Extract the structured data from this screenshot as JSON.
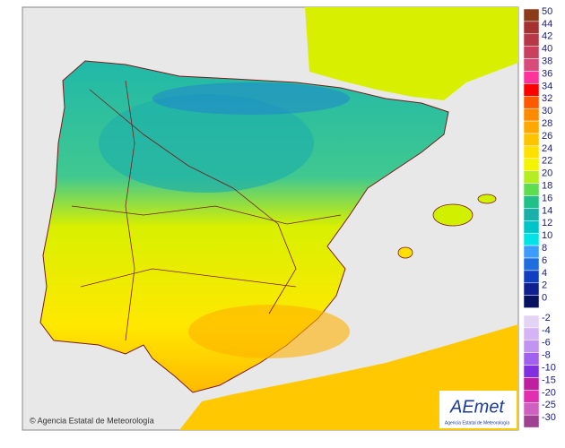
{
  "map": {
    "copyright": "© Agencia Estatal de Meteorología",
    "logo": {
      "name": "AEmet",
      "subtitle": "Agencia Estatal de Meteorología"
    },
    "legend_upper": [
      {
        "label": "50",
        "color": "#8b3a1a"
      },
      {
        "label": "44",
        "color": "#a33230"
      },
      {
        "label": "42",
        "color": "#b63848"
      },
      {
        "label": "40",
        "color": "#c8405e"
      },
      {
        "label": "38",
        "color": "#d84c7c"
      },
      {
        "label": "36",
        "color": "#ff3399"
      },
      {
        "label": "34",
        "color": "#ff0000"
      },
      {
        "label": "32",
        "color": "#ff5a00"
      },
      {
        "label": "30",
        "color": "#ff8a00"
      },
      {
        "label": "28",
        "color": "#ffa800"
      },
      {
        "label": "26",
        "color": "#ffc400"
      },
      {
        "label": "24",
        "color": "#ffe000"
      },
      {
        "label": "22",
        "color": "#f4f400"
      },
      {
        "label": "20",
        "color": "#b4ee20"
      },
      {
        "label": "18",
        "color": "#60dc50"
      },
      {
        "label": "16",
        "color": "#20c088"
      },
      {
        "label": "14",
        "color": "#18b0a8"
      },
      {
        "label": "12",
        "color": "#00c4c8"
      },
      {
        "label": "10",
        "color": "#00e4e8"
      },
      {
        "label": "8",
        "color": "#3c9cff"
      },
      {
        "label": "6",
        "color": "#1e6ee0"
      },
      {
        "label": "4",
        "color": "#1040c0"
      },
      {
        "label": "2",
        "color": "#102090"
      },
      {
        "label": "0",
        "color": "#081060"
      }
    ],
    "legend_lower": [
      {
        "label": "-2",
        "color": "#e4d4f4"
      },
      {
        "label": "-4",
        "color": "#d4b4f4"
      },
      {
        "label": "-6",
        "color": "#c094f0"
      },
      {
        "label": "-8",
        "color": "#a060f0"
      },
      {
        "label": "-10",
        "color": "#8030e0"
      },
      {
        "label": "-15",
        "color": "#c020a0"
      },
      {
        "label": "-20",
        "color": "#e030b0"
      },
      {
        "label": "-25",
        "color": "#d060c0"
      },
      {
        "label": "-30",
        "color": "#a04090"
      }
    ]
  }
}
